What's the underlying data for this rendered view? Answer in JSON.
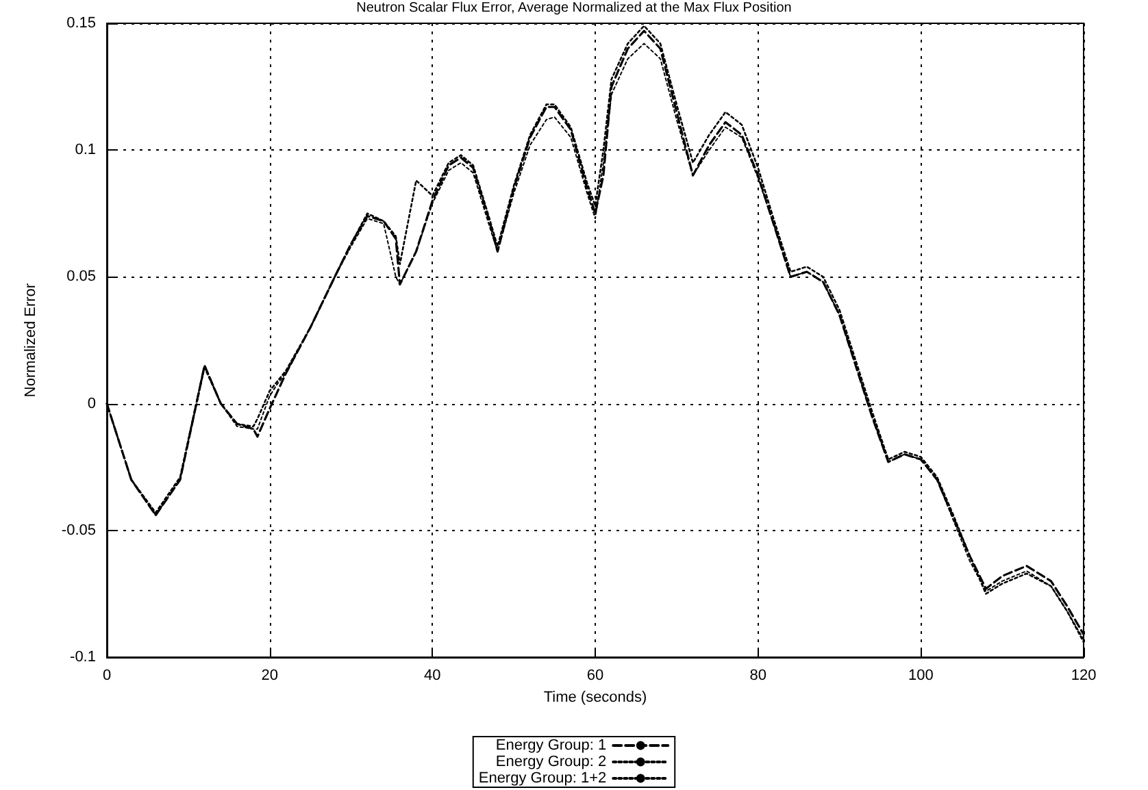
{
  "chart_data": {
    "type": "line",
    "title": "Neutron Scalar Flux Error, Average Normalized at the Max Flux Position",
    "xlabel": "Time (seconds)",
    "ylabel": "Normalized Error",
    "x": [
      0,
      3,
      6,
      9,
      12,
      14,
      16,
      18,
      18.5,
      20,
      21,
      22,
      25,
      28,
      30,
      32,
      34,
      35.5,
      36,
      38,
      40,
      42,
      43.5,
      45,
      47,
      48,
      50,
      52,
      54,
      55,
      57,
      59,
      60,
      61,
      62,
      64,
      66,
      68,
      70,
      72,
      74,
      76,
      78,
      80,
      82,
      84,
      86,
      88,
      90,
      92,
      94,
      96,
      98,
      100,
      102,
      104,
      106,
      108,
      110,
      113,
      116,
      118,
      120
    ],
    "series": [
      {
        "name": "Energy Group: 1",
        "color": "#000000",
        "line_style": "dashed",
        "values": [
          0,
          -0.03,
          -0.044,
          -0.03,
          0.015,
          0.0,
          -0.008,
          -0.01,
          -0.013,
          -0.002,
          0.005,
          0.012,
          0.03,
          0.05,
          0.063,
          0.074,
          0.072,
          0.065,
          0.047,
          0.06,
          0.08,
          0.094,
          0.097,
          0.093,
          0.072,
          0.06,
          0.085,
          0.105,
          0.117,
          0.117,
          0.108,
          0.085,
          0.075,
          0.09,
          0.125,
          0.14,
          0.147,
          0.14,
          0.115,
          0.09,
          0.102,
          0.111,
          0.106,
          0.09,
          0.07,
          0.05,
          0.052,
          0.048,
          0.035,
          0.015,
          -0.005,
          -0.023,
          -0.02,
          -0.022,
          -0.03,
          -0.045,
          -0.06,
          -0.073,
          -0.068,
          -0.064,
          -0.07,
          -0.08,
          -0.091
        ]
      },
      {
        "name": "Energy Group: 2",
        "color": "#000000",
        "line_style": "dotted",
        "values": [
          0,
          -0.03,
          -0.043,
          -0.029,
          0.015,
          0.0,
          -0.008,
          -0.009,
          -0.006,
          0.005,
          0.009,
          0.013,
          0.03,
          0.05,
          0.063,
          0.075,
          0.072,
          0.066,
          0.055,
          0.088,
          0.082,
          0.095,
          0.098,
          0.094,
          0.073,
          0.062,
          0.086,
          0.106,
          0.118,
          0.118,
          0.109,
          0.087,
          0.078,
          0.1,
          0.128,
          0.142,
          0.149,
          0.142,
          0.118,
          0.095,
          0.106,
          0.115,
          0.11,
          0.093,
          0.072,
          0.052,
          0.054,
          0.05,
          0.037,
          0.017,
          -0.003,
          -0.022,
          -0.019,
          -0.021,
          -0.029,
          -0.044,
          -0.06,
          -0.075,
          -0.071,
          -0.067,
          -0.072,
          -0.082,
          -0.094
        ]
      },
      {
        "name": "Energy Group: 1+2",
        "color": "#000000",
        "line_style": "dotted",
        "values": [
          0,
          -0.03,
          -0.044,
          -0.03,
          0.014,
          0.0,
          -0.009,
          -0.01,
          -0.01,
          0.003,
          0.008,
          0.012,
          0.03,
          0.05,
          0.062,
          0.073,
          0.071,
          0.05,
          0.047,
          0.06,
          0.079,
          0.092,
          0.095,
          0.091,
          0.07,
          0.06,
          0.083,
          0.102,
          0.112,
          0.113,
          0.105,
          0.083,
          0.073,
          0.095,
          0.122,
          0.136,
          0.142,
          0.136,
          0.112,
          0.09,
          0.1,
          0.109,
          0.105,
          0.089,
          0.07,
          0.05,
          0.052,
          0.048,
          0.035,
          0.015,
          -0.005,
          -0.023,
          -0.02,
          -0.022,
          -0.03,
          -0.046,
          -0.062,
          -0.074,
          -0.07,
          -0.066,
          -0.072,
          -0.082,
          -0.093
        ]
      }
    ],
    "xlim": [
      0,
      120
    ],
    "xticks": [
      0,
      20,
      40,
      60,
      80,
      100,
      120
    ],
    "ylim": [
      -0.1,
      0.15
    ],
    "yticks": [
      -0.1,
      -0.05,
      0,
      0.05,
      0.1,
      0.15
    ],
    "grid": true,
    "legend": "bottom",
    "marker": "none"
  }
}
